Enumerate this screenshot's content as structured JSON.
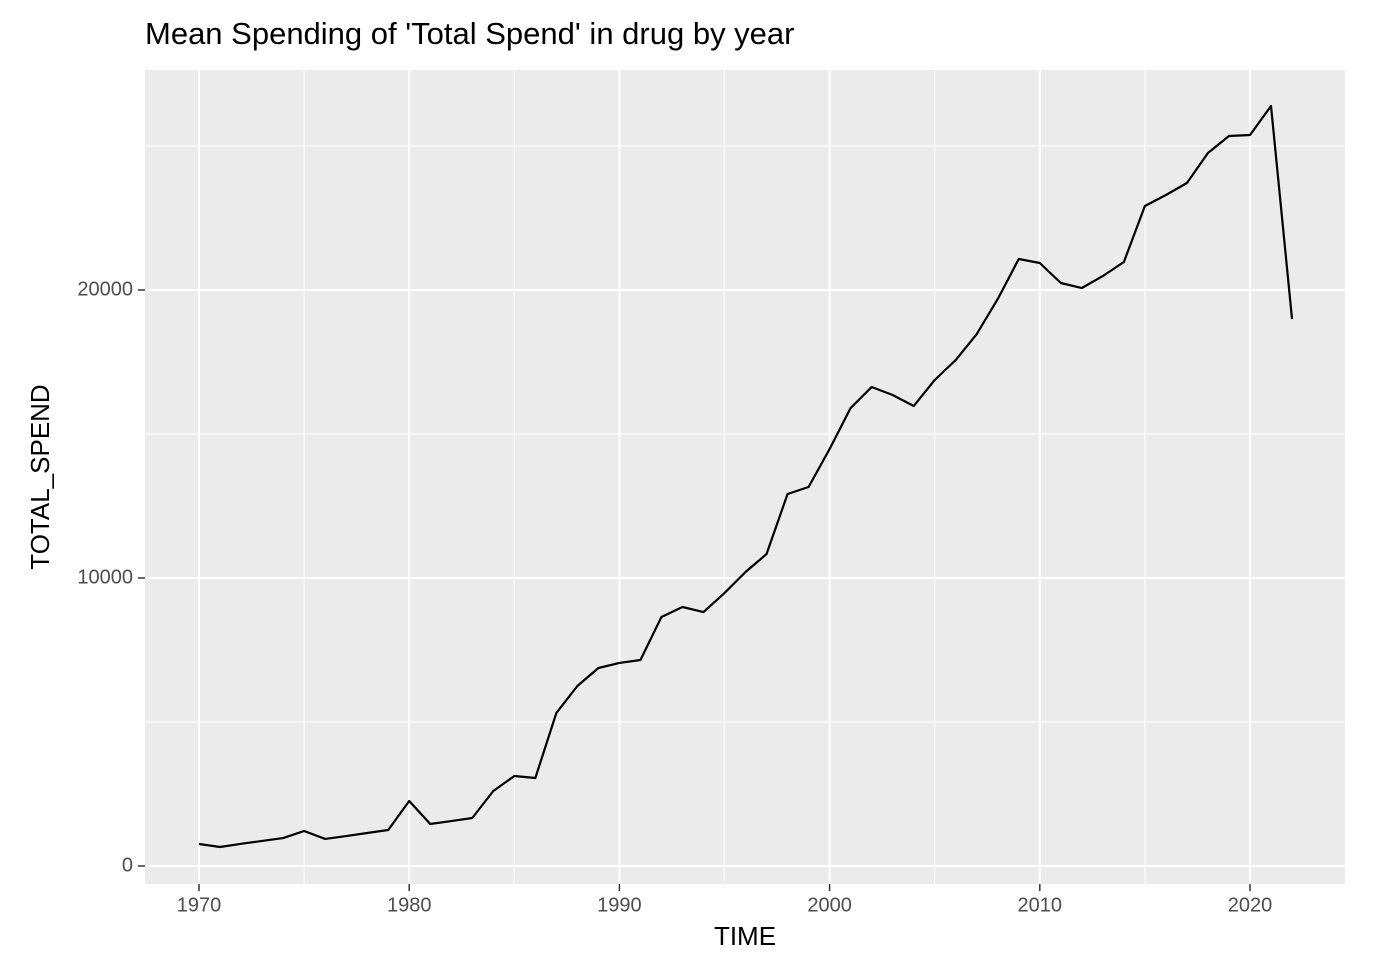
{
  "chart_data": {
    "type": "line",
    "title": "Mean Spending of 'Total Spend' in drug by year",
    "x_label": "TIME",
    "y_label": "TOTAL_SPEND",
    "x": [
      1970,
      1971,
      1972,
      1973,
      1974,
      1975,
      1976,
      1977,
      1978,
      1979,
      1980,
      1981,
      1982,
      1983,
      1984,
      1985,
      1986,
      1987,
      1988,
      1989,
      1990,
      1991,
      1992,
      1993,
      1994,
      1995,
      1996,
      1997,
      1998,
      1999,
      2000,
      2001,
      2002,
      2003,
      2004,
      2005,
      2006,
      2007,
      2008,
      2009,
      2010,
      2011,
      2012,
      2013,
      2014,
      2015,
      2016,
      2017,
      2018,
      2019,
      2020,
      2021,
      2022
    ],
    "series": [
      {
        "color": "#000000",
        "values": [
          764,
          660,
          770,
          870,
          970,
          1215,
          940,
          1040,
          1145,
          1250,
          2257,
          1458,
          1560,
          1667,
          2604,
          3125,
          3056,
          5313,
          6250,
          6875,
          7050,
          7153,
          8646,
          8993,
          8819,
          9479,
          10208,
          10833,
          12917,
          13160,
          14479,
          15903,
          16632,
          16354,
          15972,
          16875,
          17569,
          18472,
          19688,
          21076,
          20938,
          20243,
          20069,
          20486,
          20972,
          22917,
          23299,
          23715,
          24757,
          25347,
          25382,
          26389,
          18993
        ]
      }
    ],
    "xlim": [
      1967.43,
      2024.52
    ],
    "ylim": [
      -625,
      27639
    ],
    "xticks": [
      1970,
      1980,
      1990,
      2000,
      2010,
      2020
    ],
    "yticks": [
      0,
      10000,
      20000
    ],
    "xminor": [
      1975,
      1985,
      1995,
      2005,
      2015
    ],
    "yminor": [
      5000,
      15000,
      25000
    ],
    "grid": true
  }
}
